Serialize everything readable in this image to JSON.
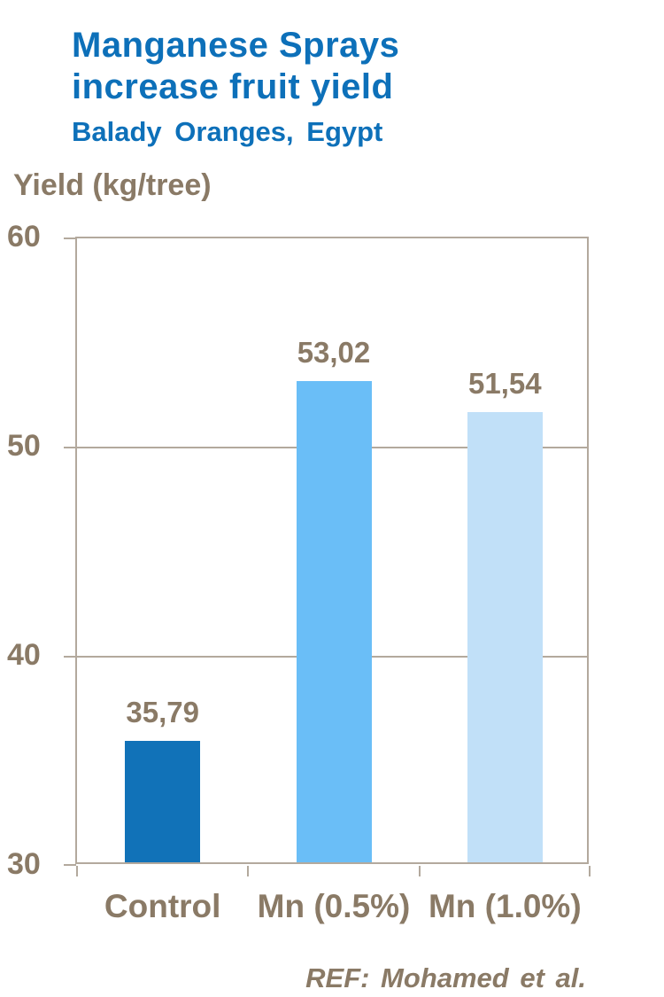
{
  "title": {
    "line1": "Manganese Sprays",
    "line2": "increase fruit yield",
    "subtitle": "Balady Oranges, Egypt"
  },
  "axis_title": "Yield (kg/tree)",
  "footer": "REF: Mohamed et al.",
  "colors": {
    "title_blue": "#0d70b9",
    "text_brown": "#8a7a66",
    "axis_line": "#b3a99d",
    "bar_control": "#1172b8",
    "bar_mn_05": "#6abef7",
    "bar_mn_10": "#c1e0f8"
  },
  "chart_data": {
    "type": "bar",
    "title": "Manganese Sprays increase fruit yield",
    "subtitle": "Balady Oranges, Egypt",
    "categories": [
      "Control",
      "Mn (0.5%)",
      "Mn (1.0%)"
    ],
    "values": [
      35.79,
      53.02,
      51.54
    ],
    "value_labels": [
      "35,79",
      "53,02",
      "51,54"
    ],
    "bar_colors": [
      "#1172b8",
      "#6abef7",
      "#c1e0f8"
    ],
    "xlabel": "",
    "ylabel": "Yield (kg/tree)",
    "ylim": [
      30,
      60
    ],
    "yticks": [
      30,
      40,
      50,
      60
    ],
    "grid": "horizontal",
    "legend": "none"
  }
}
